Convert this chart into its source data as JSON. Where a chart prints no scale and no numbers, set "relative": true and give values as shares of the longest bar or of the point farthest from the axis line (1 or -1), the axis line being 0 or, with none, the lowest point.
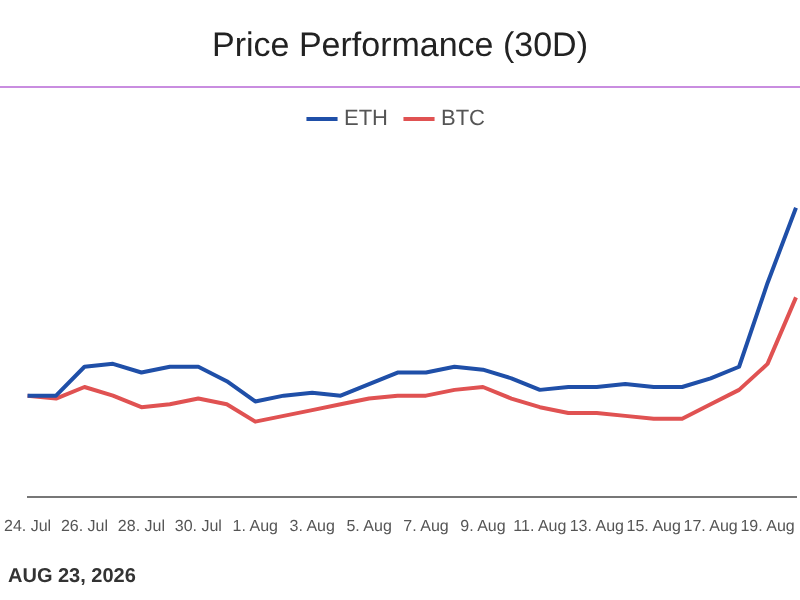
{
  "chart_data": {
    "type": "line",
    "title": "Price Performance (30D)",
    "relative": true,
    "legend": "top",
    "marker": "none",
    "line_style": "solid",
    "categories": [
      "24. Jul",
      null,
      "26. Jul",
      null,
      "28. Jul",
      null,
      "30. Jul",
      null,
      "1. Aug",
      null,
      "3. Aug",
      null,
      "5. Aug",
      null,
      "7. Aug",
      null,
      "9. Aug",
      null,
      "11. Aug",
      null,
      "13. Aug",
      null,
      "15. Aug",
      null,
      "17. Aug",
      null,
      "19. Aug",
      null
    ],
    "series": [
      {
        "name": "ETH",
        "color": "#1f4fa8",
        "values": [
          0.35,
          0.35,
          0.45,
          0.46,
          0.43,
          0.45,
          0.45,
          0.4,
          0.33,
          0.35,
          0.36,
          0.35,
          0.39,
          0.43,
          0.43,
          0.45,
          0.44,
          0.41,
          0.37,
          0.38,
          0.38,
          0.39,
          0.38,
          0.38,
          0.41,
          0.45,
          0.74,
          1
        ]
      },
      {
        "name": "BTC",
        "color": "#e05252",
        "values": [
          0.35,
          0.34,
          0.38,
          0.35,
          0.31,
          0.32,
          0.34,
          0.32,
          0.26,
          0.28,
          0.3,
          0.32,
          0.34,
          0.35,
          0.35,
          0.37,
          0.38,
          0.34,
          0.31,
          0.29,
          0.29,
          0.28,
          0.27,
          0.27,
          0.32,
          0.37,
          0.46,
          0.69
        ]
      }
    ],
    "annotations": [
      "AUG 23, 2026"
    ]
  }
}
